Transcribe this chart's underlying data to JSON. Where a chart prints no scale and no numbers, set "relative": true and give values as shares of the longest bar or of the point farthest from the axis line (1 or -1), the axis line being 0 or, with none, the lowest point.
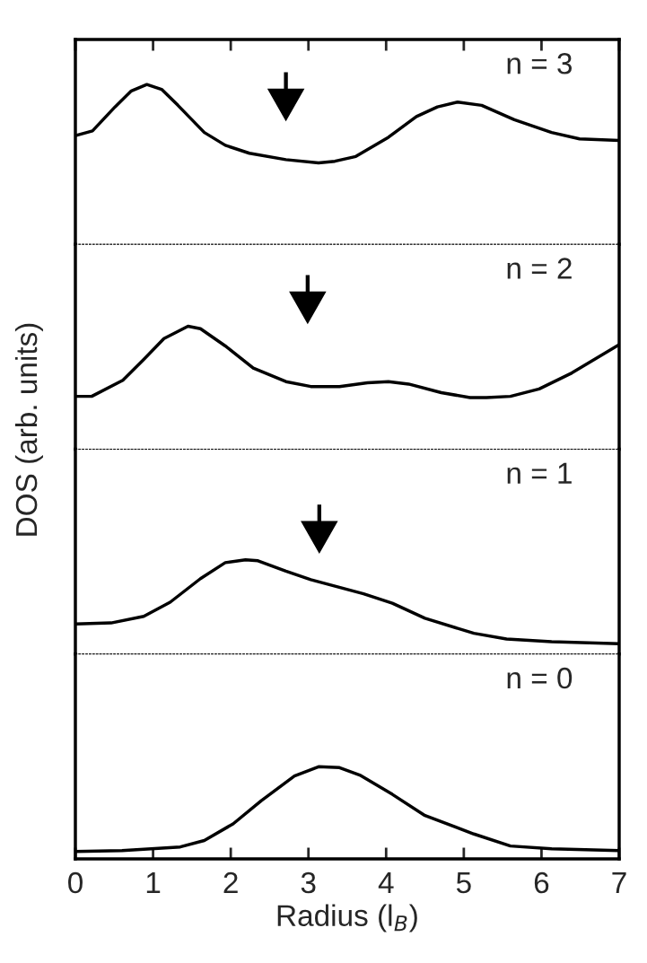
{
  "chart_data": [
    {
      "type": "line",
      "relative": true,
      "xlim": [
        0,
        7
      ],
      "xticks": [
        0,
        1,
        2,
        3,
        4,
        5,
        6,
        7
      ],
      "tick_labels": false,
      "ylabel": "DOS (arb. units)",
      "annotations": [
        "n = 3"
      ],
      "x": [
        0,
        0.22,
        0.51,
        0.72,
        0.92,
        1.11,
        1.32,
        1.66,
        1.93,
        2.24,
        2.71,
        3.13,
        3.34,
        3.61,
        4.03,
        4.39,
        4.66,
        4.92,
        5.23,
        5.65,
        6.13,
        6.49,
        7
      ],
      "series": [
        {
          "color": "#000000",
          "values": [
            0.68,
            0.71,
            0.86,
            0.96,
            1,
            0.97,
            0.87,
            0.7,
            0.62,
            0.57,
            0.53,
            0.51,
            0.52,
            0.55,
            0.67,
            0.8,
            0.86,
            0.89,
            0.87,
            0.78,
            0.7,
            0.66,
            0.65
          ]
        }
      ]
    },
    {
      "type": "line",
      "relative": true,
      "xlim": [
        0,
        7
      ],
      "xticks": [
        0,
        1,
        2,
        3,
        4,
        5,
        6,
        7
      ],
      "tick_labels": false,
      "annotations": [
        "n = 2"
      ],
      "x": [
        0,
        0.21,
        0.61,
        0.88,
        1.14,
        1.45,
        1.61,
        1.93,
        2.29,
        2.71,
        3.03,
        3.4,
        3.76,
        4.03,
        4.29,
        4.71,
        5.08,
        5.29,
        5.6,
        5.97,
        6.39,
        7
      ],
      "series": [
        {
          "color": "#000000",
          "values": [
            0.43,
            0.43,
            0.56,
            0.73,
            0.9,
            1,
            0.98,
            0.84,
            0.66,
            0.55,
            0.51,
            0.51,
            0.54,
            0.55,
            0.53,
            0.46,
            0.42,
            0.42,
            0.43,
            0.49,
            0.62,
            0.85
          ]
        }
      ]
    },
    {
      "type": "line",
      "relative": true,
      "xlim": [
        0,
        7
      ],
      "xticks": [
        0,
        1,
        2,
        3,
        4,
        5,
        6,
        7
      ],
      "tick_labels": false,
      "annotations": [
        "n = 1"
      ],
      "x": [
        0,
        0.46,
        0.88,
        1.22,
        1.61,
        1.93,
        2.19,
        2.35,
        2.71,
        3.03,
        3.71,
        4.08,
        4.5,
        5.13,
        5.55,
        6.13,
        7
      ],
      "series": [
        {
          "color": "#000000",
          "values": [
            0.32,
            0.33,
            0.4,
            0.55,
            0.8,
            0.97,
            1,
            0.99,
            0.88,
            0.79,
            0.64,
            0.54,
            0.38,
            0.22,
            0.16,
            0.13,
            0.11
          ]
        }
      ]
    },
    {
      "type": "line",
      "relative": true,
      "xlim": [
        0,
        7
      ],
      "xticks": [
        0,
        1,
        2,
        3,
        4,
        5,
        6,
        7
      ],
      "tick_labels": "x",
      "xlabel": "Radius (l$_{B}$)",
      "annotations": [
        "n = 0"
      ],
      "x": [
        0,
        0.6,
        1.35,
        1.66,
        2.03,
        2.39,
        2.82,
        3.13,
        3.4,
        3.66,
        4.08,
        4.5,
        5.13,
        5.6,
        6.13,
        7
      ],
      "series": [
        {
          "color": "#000000",
          "values": [
            0.08,
            0.09,
            0.13,
            0.2,
            0.38,
            0.63,
            0.9,
            1,
            0.99,
            0.91,
            0.7,
            0.47,
            0.27,
            0.14,
            0.11,
            0.09
          ]
        }
      ]
    }
  ]
}
